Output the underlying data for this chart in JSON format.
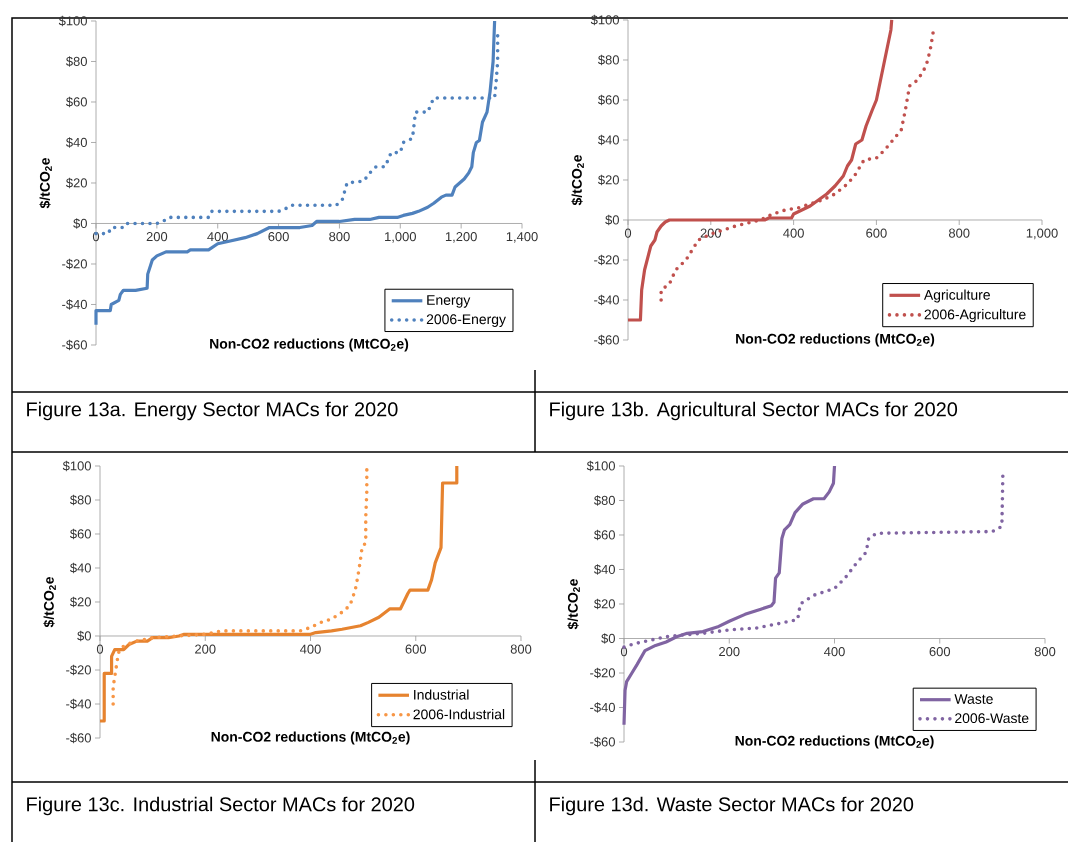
{
  "chart_data": [
    {
      "type": "line",
      "xlabel": "Non-CO2 reductions (MtCO$_{2}$e)",
      "ylabel": "$/tCO$_{2}$e",
      "xlim": [
        0,
        1400
      ],
      "ylim": [
        -60,
        100
      ],
      "xticks": [
        0,
        200,
        400,
        600,
        800,
        {
          "value": 1000,
          "label": "1,000"
        },
        {
          "value": 1200,
          "label": "1,200"
        },
        {
          "value": 1400,
          "label": "1,400"
        }
      ],
      "yticks": [
        {
          "value": -60,
          "label": "-$60"
        },
        {
          "value": -40,
          "label": "-$40"
        },
        {
          "value": -20,
          "label": "-$20"
        },
        {
          "value": 0,
          "label": "$0"
        },
        {
          "value": 20,
          "label": "$20"
        },
        {
          "value": 40,
          "label": "$40"
        },
        {
          "value": 60,
          "label": "$60"
        },
        {
          "value": 80,
          "label": "$80"
        },
        {
          "value": 100,
          "label": "$100"
        }
      ],
      "legend": "bottom right",
      "series": [
        {
          "name": "Energy",
          "color": "#4f81bd",
          "line_style": "solid",
          "x": [
            0,
            0,
            47,
            50,
            75,
            80,
            90,
            130,
            168,
            170,
            185,
            200,
            230,
            300,
            310,
            370,
            400,
            430,
            490,
            530,
            570,
            670,
            710,
            725,
            800,
            850,
            900,
            930,
            990,
            1010,
            1040,
            1060,
            1090,
            1110,
            1135,
            1150,
            1170,
            1180,
            1195,
            1210,
            1225,
            1235,
            1240,
            1250,
            1260,
            1270,
            1285,
            1295,
            1305,
            1310
          ],
          "values": [
            -50,
            -43,
            -43,
            -40,
            -38,
            -35,
            -33,
            -33,
            -32,
            -25,
            -18,
            -16,
            -14,
            -14,
            -13,
            -13,
            -10,
            -9,
            -7,
            -5,
            -2,
            -2,
            -1,
            1,
            1,
            2,
            2,
            3,
            3,
            4,
            5,
            6,
            8,
            10,
            13,
            14,
            14,
            18,
            20,
            22,
            25,
            28,
            35,
            40,
            41,
            50,
            55,
            65,
            80,
            100
          ]
        },
        {
          "name": "2006-Energy",
          "color": "#4f81bd",
          "line_style": "dotted",
          "x": [
            0,
            40,
            50,
            90,
            100,
            200,
            220,
            240,
            370,
            380,
            600,
            620,
            640,
            790,
            810,
            825,
            880,
            900,
            920,
            950,
            970,
            1000,
            1010,
            1040,
            1050,
            1090,
            1110,
            1310,
            1315,
            1320,
            1320
          ],
          "values": [
            -5,
            -5,
            -2,
            -2,
            0,
            0,
            1,
            3,
            3,
            6,
            6,
            7,
            9,
            9,
            12,
            20,
            21,
            25,
            28,
            28,
            35,
            35,
            40,
            42,
            55,
            55,
            62,
            62,
            70,
            80,
            95
          ]
        }
      ],
      "annotations": [
        "Figure 13a. Energy Sector MACs for 2020"
      ]
    },
    {
      "type": "line",
      "xlabel": "Non-CO2 reductions (MtCO$_{2}$e)",
      "ylabel": "$/tCO$_{2}$e",
      "xlim": [
        0,
        1000
      ],
      "ylim": [
        -60,
        100
      ],
      "xticks": [
        0,
        200,
        400,
        600,
        800,
        {
          "value": 1000,
          "label": "1,000"
        }
      ],
      "yticks": [
        {
          "value": -60,
          "label": "-$60"
        },
        {
          "value": -40,
          "label": "-$40"
        },
        {
          "value": -20,
          "label": "-$20"
        },
        {
          "value": 0,
          "label": "$0"
        },
        {
          "value": 20,
          "label": "$20"
        },
        {
          "value": 40,
          "label": "$40"
        },
        {
          "value": 60,
          "label": "$60"
        },
        {
          "value": 80,
          "label": "$80"
        },
        {
          "value": 100,
          "label": "$100"
        }
      ],
      "legend": "bottom right",
      "series": [
        {
          "name": "Agriculture",
          "color": "#c0504d",
          "line_style": "solid",
          "x": [
            0,
            30,
            33,
            40,
            50,
            55,
            65,
            70,
            80,
            90,
            100,
            330,
            340,
            395,
            400,
            420,
            440,
            460,
            480,
            500,
            520,
            530,
            540,
            550,
            565,
            575,
            590,
            600,
            610,
            620,
            630,
            635,
            637
          ],
          "values": [
            -50,
            -50,
            -35,
            -25,
            -17,
            -13,
            -10,
            -6,
            -3,
            -1,
            0,
            0,
            1,
            1,
            3,
            5,
            7,
            10,
            13,
            17,
            22,
            27,
            30,
            38,
            40,
            47,
            55,
            60,
            70,
            80,
            90,
            95,
            100
          ]
        },
        {
          "name": "2006-Agriculture",
          "color": "#c0504d",
          "line_style": "dotted",
          "x": [
            80,
            80,
            100,
            115,
            140,
            155,
            170,
            200,
            230,
            260,
            300,
            320,
            350,
            380,
            410,
            440,
            470,
            500,
            530,
            550,
            570,
            600,
            620,
            640,
            660,
            670,
            680,
            700,
            720,
            730,
            738
          ],
          "values": [
            -40,
            -35,
            -32,
            -25,
            -20,
            -15,
            -10,
            -7,
            -5,
            -3,
            -1,
            0,
            3,
            5,
            6,
            8,
            10,
            13,
            18,
            23,
            30,
            31,
            35,
            40,
            45,
            55,
            67,
            70,
            77,
            85,
            95
          ]
        }
      ],
      "annotations": [
        "Figure 13b. Agricultural Sector MACs for 2020"
      ]
    },
    {
      "type": "line",
      "xlabel": "Non-CO2 reductions (MtCO$_{2}$e)",
      "ylabel": "$/tCO$_{2}$e",
      "xlim": [
        0,
        800
      ],
      "ylim": [
        -60,
        100
      ],
      "xticks": [
        0,
        200,
        400,
        600,
        800
      ],
      "yticks": [
        {
          "value": -60,
          "label": "-$60"
        },
        {
          "value": -40,
          "label": "-$40"
        },
        {
          "value": -20,
          "label": "-$20"
        },
        {
          "value": 0,
          "label": "$0"
        },
        {
          "value": 20,
          "label": "$20"
        },
        {
          "value": 40,
          "label": "$40"
        },
        {
          "value": 60,
          "label": "$60"
        },
        {
          "value": 80,
          "label": "$80"
        },
        {
          "value": 100,
          "label": "$100"
        }
      ],
      "legend": "bottom right",
      "series": [
        {
          "name": "Industrial",
          "color": "#e6832f",
          "line_style": "solid",
          "x": [
            0,
            8,
            8,
            22,
            22,
            28,
            45,
            55,
            70,
            90,
            100,
            130,
            150,
            160,
            400,
            410,
            440,
            460,
            495,
            510,
            530,
            551,
            571,
            585,
            589,
            623,
            630,
            637,
            648,
            651,
            678,
            678
          ],
          "values": [
            -50,
            -50,
            -22,
            -22,
            -12,
            -8,
            -8,
            -5,
            -3,
            -3,
            -1,
            -1,
            0,
            1,
            1,
            2,
            3,
            4,
            6,
            8,
            11,
            16,
            16,
            25,
            27,
            27,
            33,
            43,
            52,
            90,
            90,
            100
          ]
        },
        {
          "name": "2006-Industrial",
          "color": "#f79646",
          "line_style": "dotted",
          "x": [
            25,
            25,
            30,
            35,
            40,
            50,
            70,
            100,
            150,
            200,
            230,
            380,
            400,
            420,
            440,
            460,
            475,
            485,
            490,
            495,
            498,
            505,
            505,
            507,
            507
          ],
          "values": [
            -40,
            -30,
            -20,
            -10,
            -7,
            -5,
            -3,
            -1,
            0,
            1,
            3,
            3,
            5,
            8,
            10,
            14,
            18,
            27,
            35,
            45,
            52,
            55,
            70,
            85,
            100
          ]
        }
      ],
      "annotations": [
        "Figure 13c. Industrial Sector MACs for 2020"
      ]
    },
    {
      "type": "line",
      "xlabel": "Non-CO2 reductions (MtCO$_{2}$e)",
      "ylabel": "$/tCO$_{2}$e",
      "xlim": [
        0,
        800
      ],
      "ylim": [
        -60,
        100
      ],
      "xticks": [
        0,
        200,
        400,
        600,
        800
      ],
      "yticks": [
        {
          "value": -60,
          "label": "-$60"
        },
        {
          "value": -40,
          "label": "-$40"
        },
        {
          "value": -20,
          "label": "-$20"
        },
        {
          "value": 0,
          "label": "$0"
        },
        {
          "value": 20,
          "label": "$20"
        },
        {
          "value": 40,
          "label": "$40"
        },
        {
          "value": 60,
          "label": "$60"
        },
        {
          "value": 80,
          "label": "$80"
        },
        {
          "value": 100,
          "label": "$100"
        }
      ],
      "legend": "bottom right",
      "series": [
        {
          "name": "Waste",
          "color": "#8064a2",
          "line_style": "solid",
          "x": [
            0,
            2,
            5,
            15,
            25,
            40,
            60,
            80,
            100,
            120,
            150,
            180,
            200,
            230,
            260,
            280,
            285,
            288,
            295,
            300,
            305,
            315,
            325,
            340,
            360,
            380,
            390,
            398,
            400
          ],
          "values": [
            -50,
            -30,
            -25,
            -20,
            -15,
            -7,
            -4,
            -2,
            1,
            3,
            4,
            7,
            10,
            14,
            17,
            19,
            21,
            35,
            38,
            58,
            63,
            66,
            73,
            78,
            81,
            81,
            85,
            90,
            100
          ]
        },
        {
          "name": "2006-Waste",
          "color": "#8064a2",
          "line_style": "dotted",
          "x": [
            0,
            20,
            50,
            80,
            110,
            150,
            200,
            250,
            300,
            330,
            335,
            360,
            380,
            400,
            420,
            440,
            460,
            465,
            480,
            700,
            718,
            719,
            720
          ],
          "values": [
            -5,
            -3,
            -1,
            1,
            2,
            3,
            5,
            6,
            9,
            11,
            20,
            25,
            27,
            29,
            35,
            43,
            50,
            58,
            61,
            62,
            65,
            80,
            97
          ]
        }
      ],
      "annotations": [
        "Figure 13d. Waste Sector MACs for 2020"
      ]
    }
  ]
}
